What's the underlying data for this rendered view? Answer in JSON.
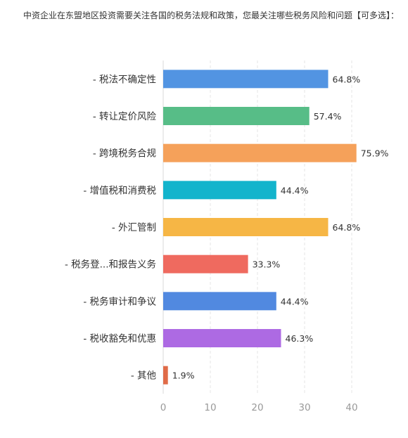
{
  "chart_data": {
    "type": "bar",
    "orientation": "horizontal",
    "title": "中资企业在东盟地区投资需要关注各国的税务法规和政策，您最关注哪些税务风险和问题【可多选】：",
    "categories": [
      "- 税法不确定性",
      "- 转让定价风险",
      "- 跨境税务合规",
      "- 增值税和消费税",
      "- 外汇管制",
      "- 税务登...和报告义务",
      "- 税务审计和争议",
      "- 税收豁免和优惠",
      "- 其他"
    ],
    "values": [
      35,
      31,
      41,
      24,
      35,
      18,
      24,
      25,
      1
    ],
    "value_labels": [
      "64.8%",
      "57.4%",
      "75.9%",
      "44.4%",
      "64.8%",
      "33.3%",
      "44.4%",
      "46.3%",
      "1.9%"
    ],
    "colors": [
      "#5294e2",
      "#57bd87",
      "#f5a15a",
      "#13b4cc",
      "#f6b645",
      "#ef6a5f",
      "#5189e0",
      "#ad6ae3",
      "#e06b48"
    ],
    "xticks": [
      "0",
      "10",
      "20",
      "30",
      "40"
    ],
    "xlim": [
      0,
      40
    ],
    "grid": true,
    "xlabel": "",
    "ylabel": ""
  }
}
